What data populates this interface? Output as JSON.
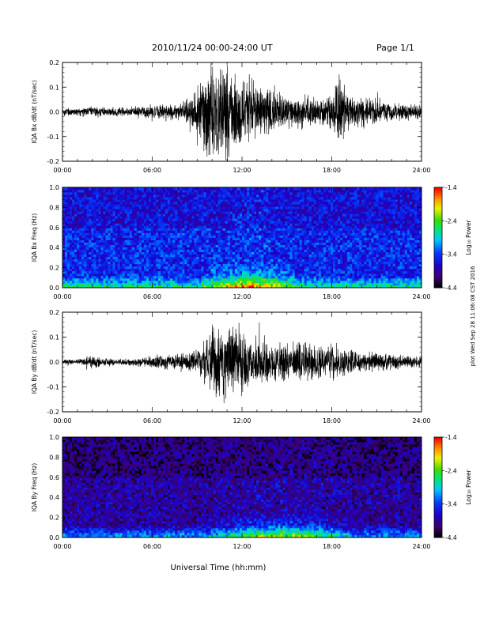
{
  "header": {
    "title": "2010/11/24  00:00-24:00 UT",
    "page": "Page 1/1"
  },
  "side_stamp": "plot Wed Sep 28 11:06:08 CST 2016",
  "footer": {
    "xlabel": "Universal Time (hh:mm)"
  },
  "chart_data": [
    {
      "type": "line",
      "name": "bx-waveform",
      "ylabel": "IQA Bx dB/dt (nT/sec)",
      "xlim": [
        0,
        24
      ],
      "ylim": [
        -0.2,
        0.2
      ],
      "x_ticks": [
        "00:00",
        "06:00",
        "12:00",
        "18:00",
        "24:00"
      ],
      "y_ticks": [
        "-0.2",
        "-0.1",
        "0.0",
        "0.1",
        "0.2"
      ],
      "x": [
        0,
        1,
        2,
        3,
        4,
        5,
        6,
        7,
        8,
        9,
        9.5,
        10,
        10.5,
        11,
        11.5,
        12,
        12.5,
        13,
        14,
        15,
        16,
        17,
        18,
        18.5,
        19,
        20,
        21,
        22,
        23,
        24
      ],
      "amplitude": [
        0.02,
        0.02,
        0.025,
        0.02,
        0.02,
        0.025,
        0.03,
        0.035,
        0.04,
        0.13,
        0.2,
        0.22,
        0.2,
        0.22,
        0.18,
        0.2,
        0.16,
        0.13,
        0.1,
        0.08,
        0.08,
        0.07,
        0.07,
        0.2,
        0.08,
        0.07,
        0.06,
        0.05,
        0.04,
        0.035
      ]
    },
    {
      "type": "heatmap",
      "name": "bx-spectrogram",
      "ylabel": "IQA Bx Freq (Hz)",
      "xlim": [
        0,
        24
      ],
      "ylim": [
        0,
        1
      ],
      "x_ticks": [
        "00:00",
        "06:00",
        "12:00",
        "18:00",
        "24:00"
      ],
      "y_ticks": [
        "0.0",
        "0.2",
        "0.4",
        "0.6",
        "0.8",
        "1.0"
      ],
      "colorbar": {
        "label": "Log₁₀ Power",
        "range": [
          -4.4,
          -1.4
        ],
        "ticks": [
          "-1.4",
          "-2.4",
          "-3.4",
          "-4.4"
        ]
      },
      "background_level": -3.5,
      "low_freq_enhancement_hours": [
        9,
        16
      ]
    },
    {
      "type": "line",
      "name": "by-waveform",
      "ylabel": "IQA By dB/dt (nT/sec)",
      "xlim": [
        0,
        24
      ],
      "ylim": [
        -0.2,
        0.2
      ],
      "x_ticks": [
        "00:00",
        "06:00",
        "12:00",
        "18:00",
        "24:00"
      ],
      "y_ticks": [
        "-0.2",
        "-0.1",
        "0.0",
        "0.1",
        "0.2"
      ],
      "x": [
        0,
        1,
        2,
        3,
        4,
        5,
        6,
        7,
        8,
        9,
        9.5,
        10,
        10.5,
        11,
        11.5,
        12,
        12.5,
        13,
        14,
        15,
        16,
        17,
        18,
        18.5,
        19,
        20,
        21,
        22,
        23,
        24
      ],
      "amplitude": [
        0.012,
        0.012,
        0.03,
        0.015,
        0.015,
        0.02,
        0.03,
        0.035,
        0.04,
        0.06,
        0.1,
        0.18,
        0.16,
        0.18,
        0.15,
        0.17,
        0.12,
        0.12,
        0.1,
        0.09,
        0.09,
        0.08,
        0.08,
        0.09,
        0.06,
        0.05,
        0.05,
        0.04,
        0.03,
        0.025
      ]
    },
    {
      "type": "heatmap",
      "name": "by-spectrogram",
      "ylabel": "IQA By Freq (Hz)",
      "xlim": [
        0,
        24
      ],
      "ylim": [
        0,
        1
      ],
      "x_ticks": [
        "00:00",
        "06:00",
        "12:00",
        "18:00",
        "24:00"
      ],
      "y_ticks": [
        "0.0",
        "0.2",
        "0.4",
        "0.6",
        "0.8",
        "1.0"
      ],
      "colorbar": {
        "label": "Log₁₀ Power",
        "range": [
          -4.4,
          -1.4
        ],
        "ticks": [
          "-1.4",
          "-2.4",
          "-3.4",
          "-4.4"
        ]
      },
      "background_level": -3.9,
      "low_freq_enhancement_hours": [
        9.5,
        19.5
      ]
    }
  ]
}
